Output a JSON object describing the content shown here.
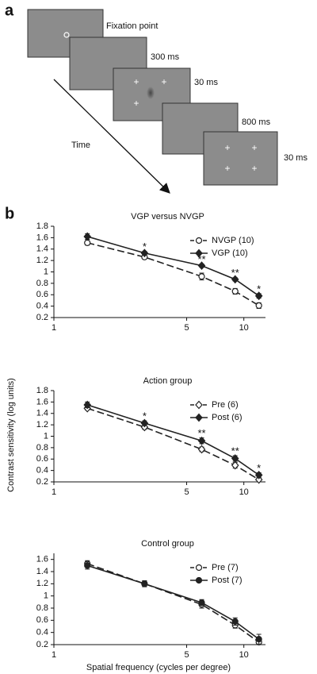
{
  "panel_a": {
    "label": "a",
    "time_label": "Time",
    "screens": [
      {
        "label": "Fixation point"
      },
      {
        "label": "300 ms"
      },
      {
        "label": "30 ms"
      },
      {
        "label": "800 ms"
      },
      {
        "label": "30 ms"
      }
    ]
  },
  "panel_b_label": "b",
  "y_axis_label": "Contrast sensitivity (log units)",
  "x_axis_label": "Spatial frequency (cycles per degree)",
  "chart_data": [
    {
      "type": "line",
      "title": "VGP versus NVGP",
      "log_x": true,
      "x": [
        1.5,
        3,
        6,
        9,
        12
      ],
      "xlim": [
        1,
        13
      ],
      "xticks": [
        1,
        5,
        10
      ],
      "ylim": [
        0.2,
        1.8
      ],
      "yticks": [
        0.2,
        0.4,
        0.6,
        0.8,
        1.0,
        1.2,
        1.4,
        1.6,
        1.8
      ],
      "legend": "top-right",
      "series": [
        {
          "name": "NVGP (10)",
          "color": "#222222",
          "marker": "circle",
          "filled": false,
          "line_style": "dashed",
          "values": [
            1.51,
            1.26,
            0.92,
            0.66,
            0.41
          ],
          "errors": [
            0.04,
            0.03,
            0.06,
            0.05,
            0.05
          ]
        },
        {
          "name": "VGP (10)",
          "color": "#222222",
          "marker": "diamond",
          "filled": true,
          "line_style": "solid",
          "values": [
            1.62,
            1.33,
            1.11,
            0.87,
            0.58
          ],
          "errors": [
            0.05,
            0.03,
            0.03,
            0.03,
            0.04
          ]
        }
      ],
      "annotations": [
        {
          "x": 3,
          "text": "*"
        },
        {
          "x": 6,
          "text": "**"
        },
        {
          "x": 9,
          "text": "**"
        },
        {
          "x": 12,
          "text": "*"
        }
      ]
    },
    {
      "type": "line",
      "title": "Action group",
      "log_x": true,
      "x": [
        1.5,
        3,
        6,
        9,
        12
      ],
      "xlim": [
        1,
        13
      ],
      "xticks": [
        1,
        5,
        10
      ],
      "ylim": [
        0.2,
        1.8
      ],
      "yticks": [
        0.2,
        0.4,
        0.6,
        0.8,
        1.0,
        1.2,
        1.4,
        1.6,
        1.8
      ],
      "legend": "top-right",
      "series": [
        {
          "name": "Pre (6)",
          "color": "#222222",
          "marker": "diamond",
          "filled": false,
          "line_style": "dashed",
          "values": [
            1.49,
            1.16,
            0.77,
            0.49,
            0.24
          ],
          "errors": [
            0.03,
            0.04,
            0.04,
            0.05,
            0.04
          ]
        },
        {
          "name": "Post (6)",
          "color": "#222222",
          "marker": "diamond",
          "filled": true,
          "line_style": "solid",
          "values": [
            1.55,
            1.23,
            0.92,
            0.61,
            0.32
          ],
          "errors": [
            0.05,
            0.04,
            0.05,
            0.05,
            0.04
          ]
        }
      ],
      "annotations": [
        {
          "x": 3,
          "text": "*"
        },
        {
          "x": 6,
          "text": "**"
        },
        {
          "x": 9,
          "text": "**"
        },
        {
          "x": 12,
          "text": "*"
        }
      ]
    },
    {
      "type": "line",
      "title": "Control group",
      "log_x": true,
      "x": [
        1.5,
        3,
        6,
        9,
        12
      ],
      "xlim": [
        1,
        13
      ],
      "xticks": [
        1,
        5,
        10
      ],
      "ylim": [
        0.2,
        1.7
      ],
      "yticks": [
        0.2,
        0.4,
        0.6,
        0.8,
        1.0,
        1.2,
        1.4,
        1.6
      ],
      "legend": "top-right",
      "series": [
        {
          "name": "Pre (7)",
          "color": "#222222",
          "marker": "circle",
          "filled": false,
          "line_style": "dashed",
          "values": [
            1.53,
            1.2,
            0.86,
            0.52,
            0.24
          ],
          "errors": [
            0.05,
            0.05,
            0.06,
            0.05,
            0.04
          ]
        },
        {
          "name": "Post (7)",
          "color": "#222222",
          "marker": "circle",
          "filled": true,
          "line_style": "solid",
          "values": [
            1.5,
            1.2,
            0.89,
            0.58,
            0.29
          ],
          "errors": [
            0.06,
            0.04,
            0.05,
            0.06,
            0.08
          ]
        }
      ],
      "annotations": []
    }
  ]
}
